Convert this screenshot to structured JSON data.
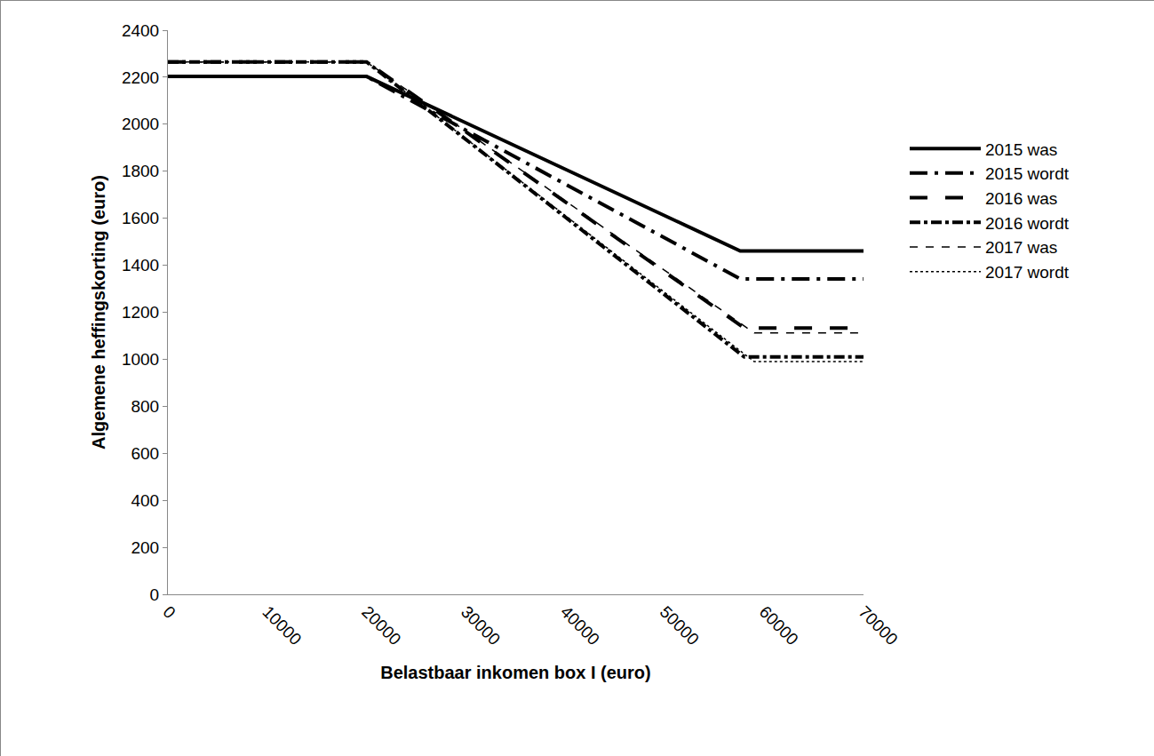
{
  "chart_data": {
    "type": "line",
    "x_label": "Belastbaar inkomen box I (euro)",
    "y_label": "Algemene heffingskorting (euro)",
    "xlim": [
      0,
      70000
    ],
    "xticks": [
      0,
      10000,
      20000,
      30000,
      40000,
      50000,
      60000,
      70000
    ],
    "ylim": [
      0,
      2400
    ],
    "yticks": [
      0,
      200,
      400,
      600,
      800,
      1000,
      1200,
      1400,
      1600,
      1800,
      2000,
      2200,
      2400
    ],
    "grid": false,
    "legend": "right",
    "series": [
      {
        "name": "2015 was",
        "color": "#000000",
        "line_style": "solid",
        "x": [
          0,
          20000,
          57600,
          70000
        ],
        "values": [
          2203,
          2203,
          1461,
          1461
        ]
      },
      {
        "name": "2015 wordt",
        "color": "#000000",
        "line_style": "longdashdot",
        "x": [
          0,
          20000,
          57600,
          70000
        ],
        "values": [
          2203,
          2203,
          1342,
          1342
        ]
      },
      {
        "name": "2016 was",
        "color": "#000000",
        "line_style": "longdash",
        "x": [
          0,
          20000,
          58000,
          70000
        ],
        "values": [
          2265,
          2265,
          1133,
          1133
        ]
      },
      {
        "name": "2016 wordt",
        "color": "#000000",
        "line_style": "dashdot",
        "x": [
          0,
          20000,
          58000,
          70000
        ],
        "values": [
          2265,
          2265,
          1010,
          1010
        ]
      },
      {
        "name": "2017 was",
        "color": "#000000",
        "line_style": "dash",
        "x": [
          0,
          20000,
          59000,
          70000
        ],
        "values": [
          2265,
          2265,
          1112,
          1112
        ]
      },
      {
        "name": "2017 wordt",
        "color": "#000000",
        "line_style": "dot",
        "x": [
          0,
          20000,
          59000,
          70000
        ],
        "values": [
          2265,
          2265,
          990,
          990
        ]
      }
    ]
  }
}
